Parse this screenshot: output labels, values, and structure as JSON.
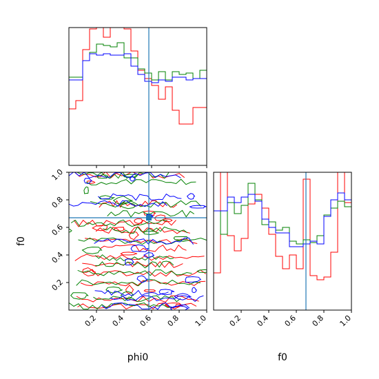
{
  "chart_data": [
    {
      "type": "histogram",
      "panel": "phi0-marginal",
      "xlim": [
        0,
        1
      ],
      "x_ticks": [
        "0.2",
        "0.4",
        "0.6",
        "0.8",
        "1.0"
      ],
      "bin_edges": [
        0,
        0.05,
        0.1,
        0.15,
        0.2,
        0.25,
        0.3,
        0.35,
        0.4,
        0.45,
        0.5,
        0.55,
        0.6,
        0.65,
        0.7,
        0.75,
        0.8,
        0.85,
        0.9,
        0.95,
        1.0
      ],
      "truth_x": 0.58,
      "colors": [
        "#ff0000",
        "#008000",
        "#0000ff"
      ],
      "series": [
        {
          "color": "#ff0000",
          "values": [
            0.41,
            0.47,
            0.84,
            0.99,
            1.04,
            0.93,
            1.0,
            1.04,
            0.99,
            0.83,
            0.69,
            0.63,
            0.58,
            0.48,
            0.57,
            0.4,
            0.3,
            0.3,
            0.42,
            0.42
          ]
        },
        {
          "color": "#008000",
          "values": [
            0.64,
            0.64,
            0.76,
            0.82,
            0.88,
            0.87,
            0.86,
            0.89,
            0.78,
            0.78,
            0.7,
            0.67,
            0.62,
            0.68,
            0.62,
            0.68,
            0.66,
            0.67,
            0.63,
            0.69
          ]
        },
        {
          "color": "#0000ff",
          "values": [
            0.62,
            0.62,
            0.76,
            0.81,
            0.8,
            0.81,
            0.8,
            0.8,
            0.81,
            0.72,
            0.66,
            0.61,
            0.6,
            0.62,
            0.61,
            0.64,
            0.64,
            0.62,
            0.63,
            0.63
          ]
        }
      ]
    },
    {
      "type": "contour",
      "panel": "phi0-f0-joint",
      "xlim": [
        0,
        1
      ],
      "ylim": [
        0,
        1
      ],
      "x_ticks": [
        "0.2",
        "0.4",
        "0.6",
        "0.8",
        "1.0"
      ],
      "y_ticks": [
        "0.2",
        "0.4",
        "0.6",
        "0.8",
        "1.0"
      ],
      "xlabel": "phi0",
      "ylabel": "f0",
      "truth": [
        0.58,
        0.67
      ],
      "colors": [
        "#ff0000",
        "#008000",
        "#0000ff"
      ],
      "grid": false
    },
    {
      "type": "histogram",
      "panel": "f0-marginal",
      "xlim": [
        0,
        1
      ],
      "x_ticks": [
        "0.2",
        "0.4",
        "0.6",
        "0.8",
        "1.0"
      ],
      "xlabel": "f0",
      "bin_edges": [
        0,
        0.05,
        0.1,
        0.15,
        0.2,
        0.25,
        0.3,
        0.35,
        0.4,
        0.45,
        0.5,
        0.55,
        0.6,
        0.65,
        0.7,
        0.75,
        0.8,
        0.85,
        0.9,
        0.95,
        1.0
      ],
      "truth_x": 0.67,
      "colors": [
        "#ff0000",
        "#008000",
        "#0000ff"
      ],
      "series": [
        {
          "color": "#ff0000",
          "values": [
            0.27,
            1.04,
            0.54,
            0.43,
            0.52,
            0.77,
            0.84,
            0.74,
            0.55,
            0.39,
            0.3,
            0.4,
            0.3,
            0.95,
            0.25,
            0.22,
            0.24,
            0.42,
            1.04,
            0.78
          ]
        },
        {
          "color": "#008000",
          "values": [
            0.72,
            0.55,
            0.78,
            0.7,
            0.76,
            0.92,
            0.8,
            0.62,
            0.64,
            0.58,
            0.6,
            0.5,
            0.48,
            0.51,
            0.49,
            0.54,
            0.69,
            0.74,
            0.79,
            0.75
          ]
        },
        {
          "color": "#0000ff",
          "values": [
            0.72,
            0.72,
            0.82,
            0.78,
            0.82,
            0.84,
            0.79,
            0.66,
            0.6,
            0.56,
            0.56,
            0.46,
            0.46,
            0.48,
            0.5,
            0.48,
            0.68,
            0.8,
            0.85,
            0.8
          ]
        }
      ]
    }
  ],
  "colors": {
    "truth_line": "#1f77b4",
    "axes": "#000000"
  }
}
